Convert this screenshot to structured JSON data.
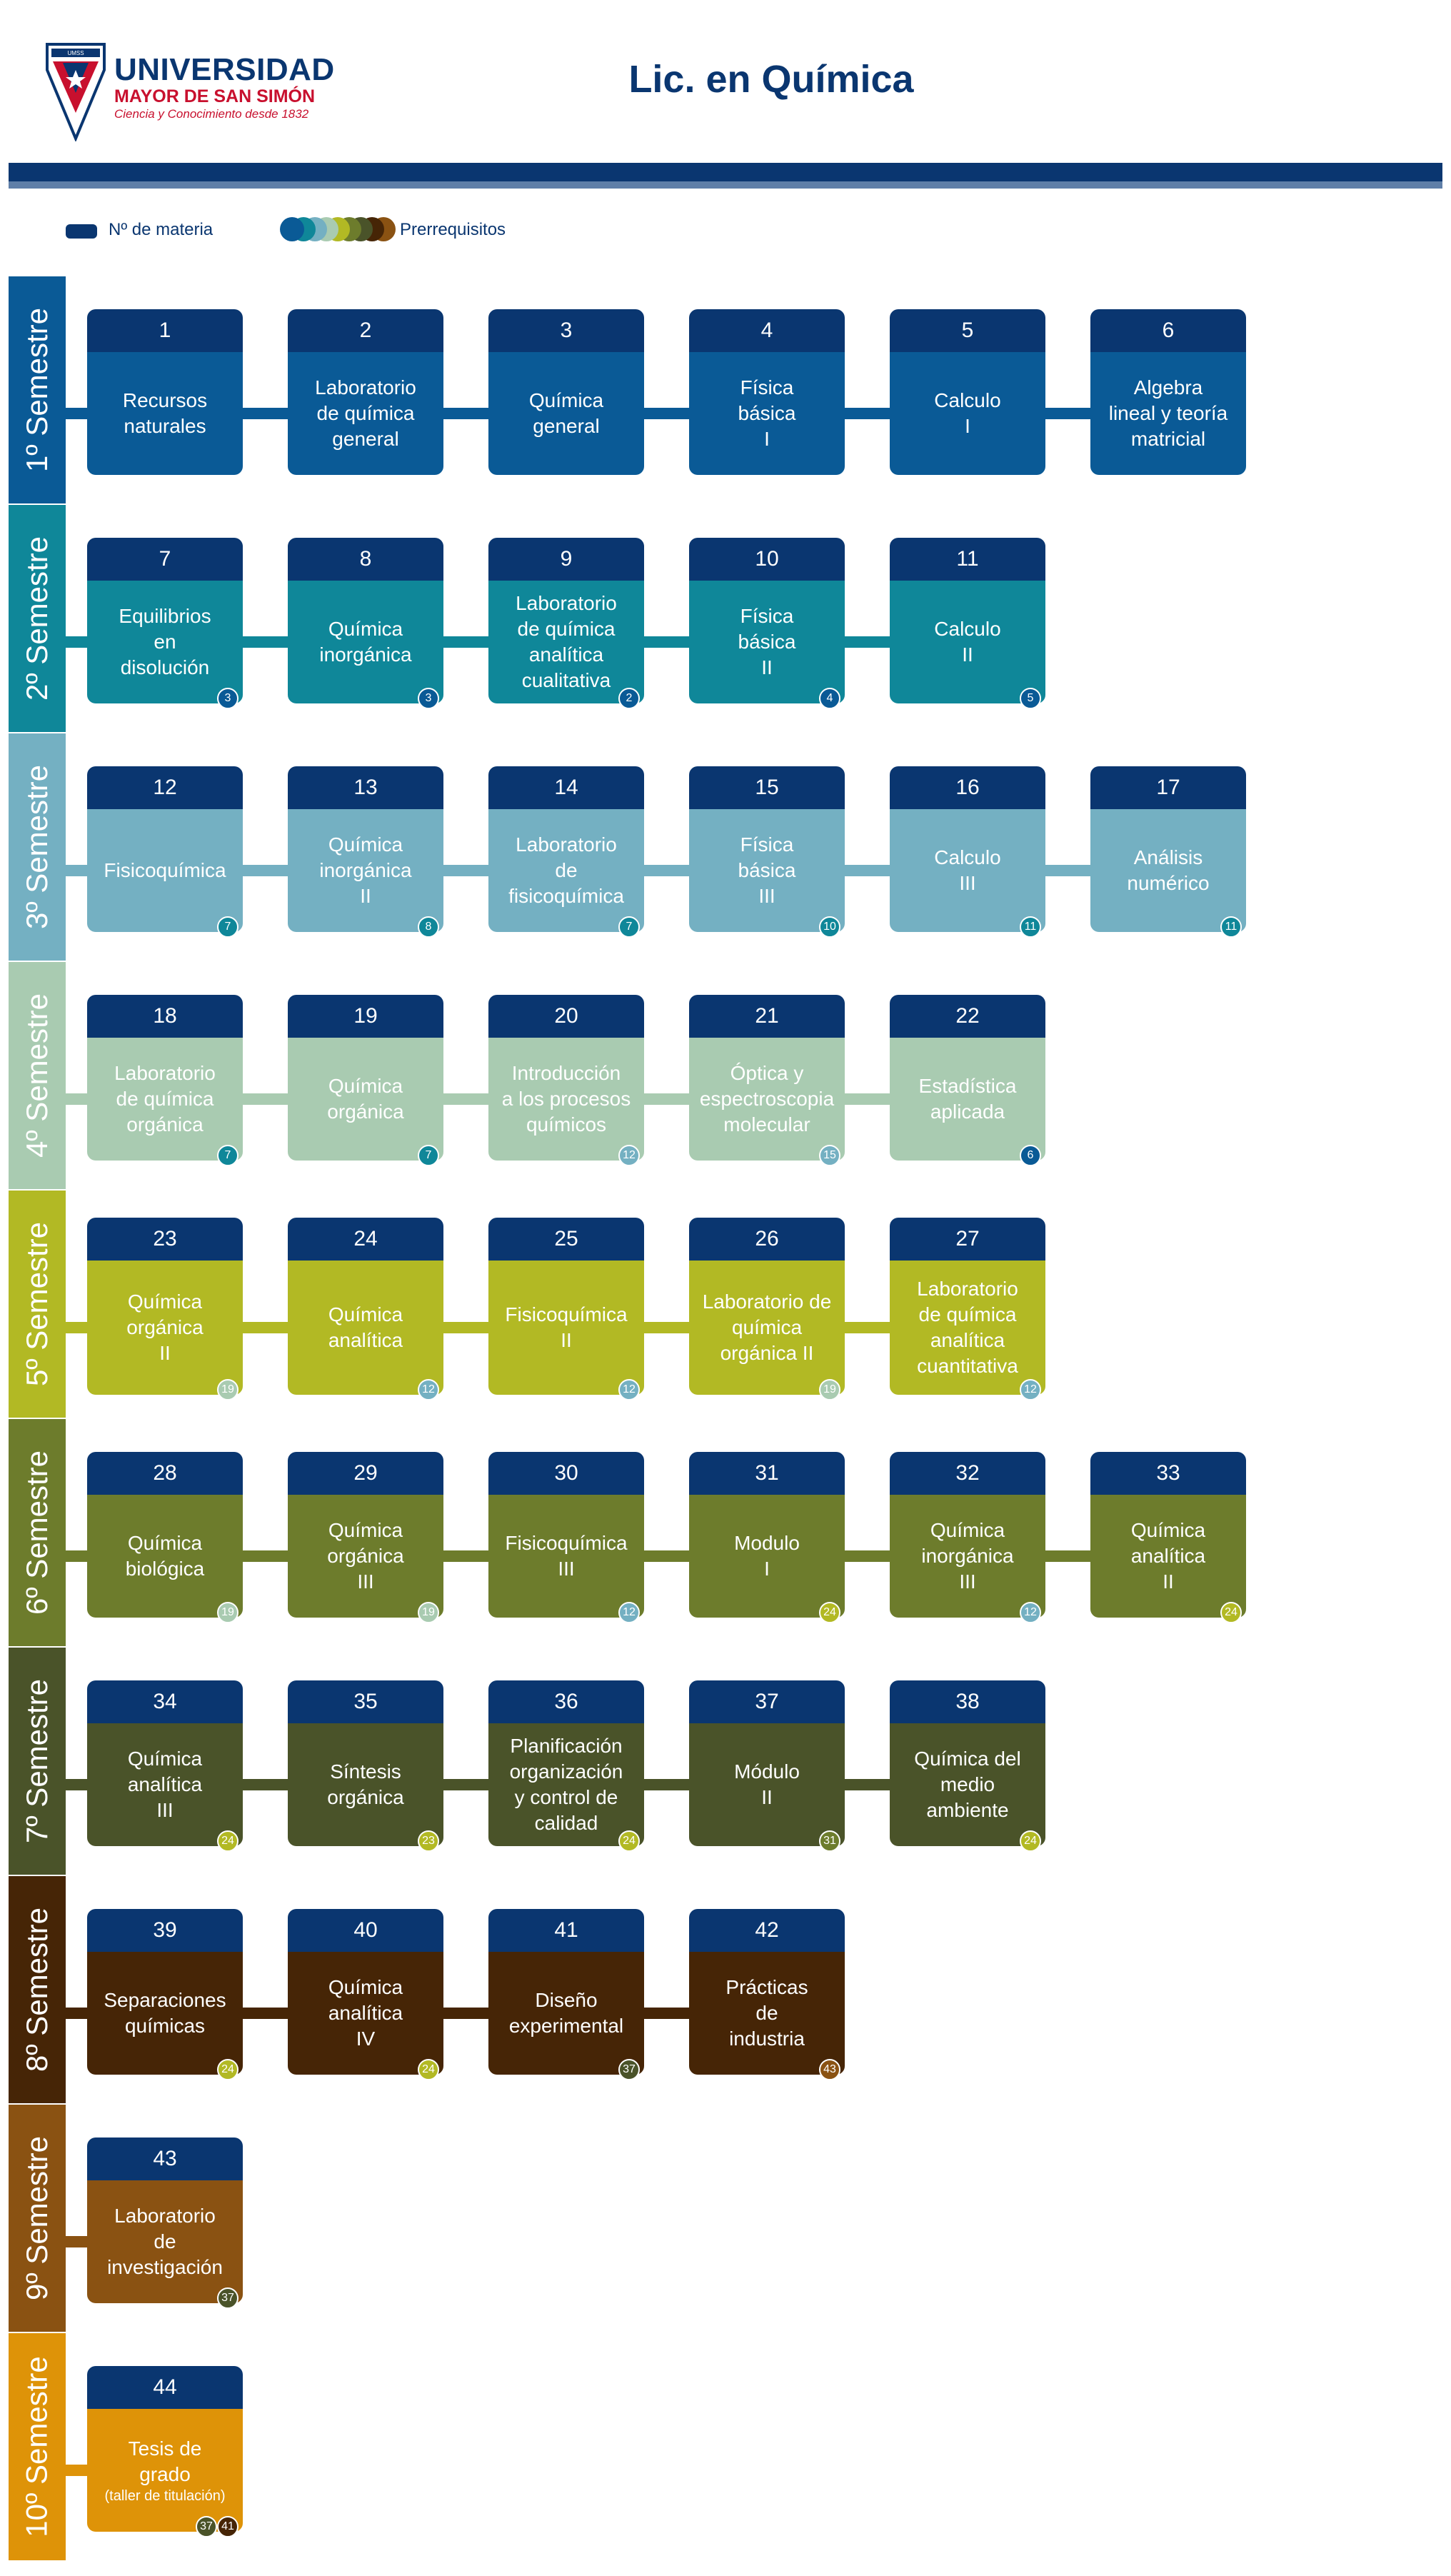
{
  "header": {
    "logo_acronym": "UMSS",
    "logo_line1": "UNIVERSIDAD",
    "logo_line2": "MAYOR DE SAN SIMÓN",
    "logo_tagline": "Ciencia y Conocimiento desde 1832",
    "title": "Lic. en Química"
  },
  "legend": {
    "materia_label": "Nº de materia",
    "prereq_label": "Prerrequisitos"
  },
  "colors": {
    "navy": "#0a3670",
    "s1": "#0a5a96",
    "s2": "#0f8799",
    "s3": "#74b0c2",
    "s4": "#a9cbb1",
    "s5": "#b2b924",
    "s6": "#6d7c2c",
    "s7": "#4a5329",
    "s8": "#462506",
    "s9": "#8a5212",
    "s10": "#de9308"
  },
  "semesters": [
    {
      "label": "1º Semestre",
      "color": "#0a5a96",
      "textColor": "#ffffff",
      "courses": [
        {
          "num": "1",
          "name": "Recursos\nnaturales",
          "pre": []
        },
        {
          "num": "2",
          "name": "Laboratorio\nde química\ngeneral",
          "pre": []
        },
        {
          "num": "3",
          "name": "Química\ngeneral",
          "pre": []
        },
        {
          "num": "4",
          "name": "Física\nbásica\nI",
          "pre": []
        },
        {
          "num": "5",
          "name": "Calculo\nI",
          "pre": []
        },
        {
          "num": "6",
          "name": "Algebra\nlineal y teoría\nmatricial",
          "pre": []
        }
      ]
    },
    {
      "label": "2º Semestre",
      "color": "#0f8799",
      "textColor": "#ffffff",
      "courses": [
        {
          "num": "7",
          "name": "Equilibrios\nen\ndisolución",
          "pre": [
            "3"
          ]
        },
        {
          "num": "8",
          "name": "Química\ninorgánica",
          "pre": [
            "3"
          ]
        },
        {
          "num": "9",
          "name": "Laboratorio\nde química\nanalítica\ncualitativa",
          "pre": [
            "2"
          ]
        },
        {
          "num": "10",
          "name": "Física\nbásica\nII",
          "pre": [
            "4"
          ]
        },
        {
          "num": "11",
          "name": "Calculo\nII",
          "pre": [
            "5"
          ]
        }
      ]
    },
    {
      "label": "3º Semestre",
      "color": "#74b0c2",
      "textColor": "#ffffff",
      "courses": [
        {
          "num": "12",
          "name": "Fisicoquímica",
          "pre": [
            "7"
          ]
        },
        {
          "num": "13",
          "name": "Química\ninorgánica\nII",
          "pre": [
            "8"
          ]
        },
        {
          "num": "14",
          "name": "Laboratorio\nde\nfisicoquímica",
          "pre": [
            "7"
          ]
        },
        {
          "num": "15",
          "name": "Física\nbásica\nIII",
          "pre": [
            "10"
          ]
        },
        {
          "num": "16",
          "name": "Calculo\nIII",
          "pre": [
            "11"
          ]
        },
        {
          "num": "17",
          "name": "Análisis\nnumérico",
          "pre": [
            "11"
          ]
        }
      ]
    },
    {
      "label": "4º Semestre",
      "color": "#a9cbb1",
      "textColor": "#ffffff",
      "courses": [
        {
          "num": "18",
          "name": "Laboratorio\nde química\norgánica",
          "pre": [
            "7"
          ]
        },
        {
          "num": "19",
          "name": "Química\norgánica",
          "pre": [
            "7"
          ]
        },
        {
          "num": "20",
          "name": "Introducción\na los procesos\nquímicos",
          "pre": [
            "12"
          ]
        },
        {
          "num": "21",
          "name": "Óptica y\nespectroscopia\nmolecular",
          "pre": [
            "15"
          ]
        },
        {
          "num": "22",
          "name": "Estadística\naplicada",
          "pre": [
            "6"
          ]
        }
      ]
    },
    {
      "label": "5º Semestre",
      "color": "#b2b924",
      "textColor": "#ffffff",
      "courses": [
        {
          "num": "23",
          "name": "Química\norgánica\nII",
          "pre": [
            "19"
          ]
        },
        {
          "num": "24",
          "name": "Química\nanalítica",
          "pre": [
            "12"
          ]
        },
        {
          "num": "25",
          "name": "Fisicoquímica\nII",
          "pre": [
            "12"
          ]
        },
        {
          "num": "26",
          "name": "Laboratorio de\nquímica\norgánica II",
          "pre": [
            "19"
          ]
        },
        {
          "num": "27",
          "name": "Laboratorio\nde química\nanalítica\ncuantitativa",
          "pre": [
            "12"
          ]
        }
      ]
    },
    {
      "label": "6º Semestre",
      "color": "#6d7c2c",
      "textColor": "#ffffff",
      "courses": [
        {
          "num": "28",
          "name": "Química\nbiológica",
          "pre": [
            "19"
          ]
        },
        {
          "num": "29",
          "name": "Química\norgánica\nIII",
          "pre": [
            "19"
          ]
        },
        {
          "num": "30",
          "name": "Fisicoquímica\nIII",
          "pre": [
            "12"
          ]
        },
        {
          "num": "31",
          "name": "Modulo\nI",
          "pre": [
            "24"
          ]
        },
        {
          "num": "32",
          "name": "Química\ninorgánica\nIII",
          "pre": [
            "12"
          ]
        },
        {
          "num": "33",
          "name": "Química\nanalítica\nII",
          "pre": [
            "24"
          ]
        }
      ]
    },
    {
      "label": "7º Semestre",
      "color": "#4a5329",
      "textColor": "#ffffff",
      "courses": [
        {
          "num": "34",
          "name": "Química\nanalítica\nIII",
          "pre": [
            "24"
          ]
        },
        {
          "num": "35",
          "name": "Síntesis\norgánica",
          "pre": [
            "23"
          ]
        },
        {
          "num": "36",
          "name": "Planificación\norganización\ny control de\ncalidad",
          "pre": [
            "24"
          ]
        },
        {
          "num": "37",
          "name": "Módulo\nII",
          "pre": [
            "31"
          ]
        },
        {
          "num": "38",
          "name": "Química del\nmedio\nambiente",
          "pre": [
            "24"
          ]
        }
      ]
    },
    {
      "label": "8º Semestre",
      "color": "#462506",
      "textColor": "#ffffff",
      "courses": [
        {
          "num": "39",
          "name": "Separaciones\nquímicas",
          "pre": [
            "24"
          ]
        },
        {
          "num": "40",
          "name": "Química\nanalítica\nIV",
          "pre": [
            "24"
          ]
        },
        {
          "num": "41",
          "name": "Diseño\nexperimental",
          "pre": [
            "37"
          ]
        },
        {
          "num": "42",
          "name": "Prácticas\nde\nindustria",
          "pre": [
            "43"
          ]
        }
      ]
    },
    {
      "label": "9º Semestre",
      "color": "#8a5212",
      "textColor": "#ffffff",
      "courses": [
        {
          "num": "43",
          "name": "Laboratorio\nde\ninvestigación",
          "pre": [
            "37"
          ]
        }
      ]
    },
    {
      "label": "10º Semestre",
      "color": "#de9308",
      "textColor": "#ffffff",
      "courses": [
        {
          "num": "44",
          "name": "Tesis de\ngrado",
          "note": "(taller de titulación)",
          "pre": [
            "37",
            "41"
          ]
        }
      ]
    }
  ]
}
